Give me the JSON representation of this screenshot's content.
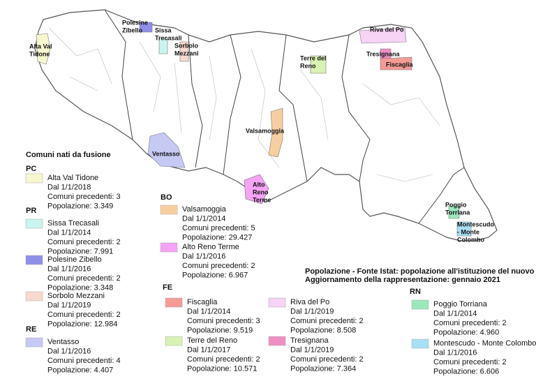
{
  "map_labels": [
    [
      "Alta Val",
      "Tidone"
    ],
    [
      "Polesine",
      "Zibello"
    ],
    [
      "Sissa",
      "Trecasali"
    ],
    [
      "Sorbolo",
      "Mezzani"
    ],
    [
      "Riva del Po"
    ],
    [
      "Terre del",
      "Reno"
    ],
    [
      "Tresignana"
    ],
    [
      "Fiscaglia"
    ],
    [
      "Valsamoggia"
    ],
    [
      "Ventasso"
    ],
    [
      "Alto",
      "Reno",
      "Terme"
    ],
    [
      "Poggio",
      "Torriana"
    ],
    [
      "Montescudo",
      "- Monte",
      "Colombo"
    ]
  ],
  "legend": {
    "title": "Comuni nati da fusione",
    "groups": [
      {
        "code": "PC",
        "items": [
          {
            "name": "Alta Val Tidone",
            "color": "#f7f7cf",
            "lines": [
              "Dal 1/1/2018",
              "Comuni precedenti: 3",
              "Popolazione: 3.349"
            ]
          }
        ]
      },
      {
        "code": "PR",
        "items": [
          {
            "name": "Sissa Trecasali",
            "color": "#c9f5ee",
            "lines": [
              "Dal 1/1/2014",
              "Comuni precedenti: 2",
              "Popolazione: 7.991"
            ]
          },
          {
            "name": "Polesine Zibello",
            "color": "#8f8fe8",
            "lines": [
              "Dal 1/1/2016",
              "Comuni precedenti: 2",
              "Popolazione: 3.348"
            ]
          },
          {
            "name": "Sorbolo Mezzani",
            "color": "#f9d9cf",
            "lines": [
              "Dal 1/1/2019",
              "Comuni precedenti: 2",
              "Popolazione: 12.984"
            ]
          }
        ]
      },
      {
        "code": "RE",
        "items": [
          {
            "name": "Ventasso",
            "color": "#c7c9f5",
            "lines": [
              "Dal 1/1/2016",
              "Comuni precedenti: 4",
              "Popolazione: 4.407"
            ]
          }
        ]
      },
      {
        "code": "BO",
        "items": [
          {
            "name": "Valsamoggia",
            "color": "#f7cf9e",
            "lines": [
              "Dal 1/1/2014",
              "Comuni precedenti: 5",
              "Popolazione: 29.427"
            ]
          },
          {
            "name": "Alto Reno Terme",
            "color": "#f5a3f5",
            "lines": [
              "Dal 1/1/2016",
              "Comuni precedenti: 2",
              "Popolazione: 6.967"
            ]
          }
        ]
      },
      {
        "code": "FE",
        "items": [
          {
            "name": "Fiscaglia",
            "color": "#f49b96",
            "lines": [
              "Dal 1/1/2014",
              "Comuni precedenti: 3",
              "Popolazione: 9.519"
            ]
          },
          {
            "name": "Terre del Reno",
            "color": "#d8f2b3",
            "lines": [
              "Dal 1/1/2017",
              "Comuni precedenti: 2",
              "Popolazione: 10.571"
            ]
          },
          {
            "name": "Riva del Po",
            "color": "#f7d3f5",
            "lines": [
              "Dal 1/1/2019",
              "Comuni precedenti: 2",
              "Popolazione: 8.508"
            ]
          },
          {
            "name": "Tresignana",
            "color": "#ef8fc4",
            "lines": [
              "Dal 1/1/2019",
              "Comuni precedenti: 2",
              "Popolazione: 7.364"
            ]
          }
        ]
      },
      {
        "code": "RN",
        "items": [
          {
            "name": "Poggio Torriana",
            "color": "#9ce8bd",
            "lines": [
              "Dal 1/1/2014",
              "Comuni precedenti: 2",
              "Popolazione: 4.960"
            ]
          },
          {
            "name": "Montescudo - Monte Colombo",
            "color": "#a9dff5",
            "lines": [
              "Dal 1/1/2016",
              "Comuni precedenti: 2",
              "Popolazione: 6.606"
            ]
          }
        ]
      }
    ]
  },
  "note": [
    "Popolazione - Fonte Istat: popolazione all'istituzione del nuovo Comune",
    "Aggiornamento della rappresentazione: gennaio 2021"
  ]
}
